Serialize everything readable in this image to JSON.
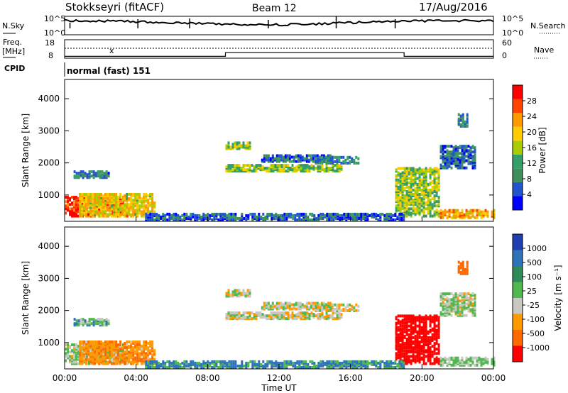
{
  "header": {
    "station": "Stokkseyri (fitACF)",
    "beam": "Beam 12",
    "date": "17/Aug/2016"
  },
  "noise_panel": {
    "left_label": "N.Sky",
    "right_label": "N.Search",
    "y_ticks_left": [
      "10^5",
      "10^0"
    ],
    "y_ticks_right": [
      "10^5",
      "10^0"
    ]
  },
  "freq_panel": {
    "left_label_1": "Freq.",
    "left_label_2": "[MHz]",
    "right_label": "Nave",
    "y_ticks_left": [
      "18",
      "8"
    ],
    "y_ticks_right": [
      "60",
      "0"
    ]
  },
  "cpid": {
    "label": "CPID",
    "value": "normal (fast) 151"
  },
  "power_panel": {
    "ylabel": "Slant Range [km]",
    "yticks": [
      "4000",
      "3000",
      "2000",
      "1000"
    ],
    "colorbar_label": "Power [dB]",
    "colorbar_ticks": [
      "28",
      "24",
      "20",
      "16",
      "12",
      "8",
      "4"
    ],
    "colors": [
      "#0000ff",
      "#2255cc",
      "#3f8f5a",
      "#33a06a",
      "#aacc00",
      "#ffcc00",
      "#ff9900",
      "#ff4400",
      "#ff0000"
    ]
  },
  "velocity_panel": {
    "ylabel": "Slant Range [km]",
    "yticks": [
      "4000",
      "3000",
      "2000",
      "1000"
    ],
    "colorbar_label": "Velocity [m s⁻¹]",
    "colorbar_ticks": [
      "1000",
      "500",
      "100",
      "25",
      "-25",
      "-100",
      "-500",
      "-1000"
    ],
    "colors": [
      "#1f3fb0",
      "#2f74b8",
      "#2e8b57",
      "#4fb84f",
      "#c8c8c0",
      "#ff9900",
      "#ff6a00",
      "#ff0000"
    ]
  },
  "xaxis": {
    "ticks": [
      "00:00",
      "04:00",
      "08:00",
      "12:00",
      "16:00",
      "20:00",
      "00:00"
    ],
    "label": "Time UT"
  },
  "chart_data": {
    "type": "heatmap",
    "x_range": [
      "00:00",
      "24:00"
    ],
    "y_range": [
      180,
      4600
    ],
    "power_scale": [
      0,
      30
    ],
    "velocity_scale": [
      -1000,
      1000
    ],
    "frequency_steps": [
      {
        "start": "00:00",
        "end": "09:00",
        "freq": 9
      },
      {
        "start": "09:00",
        "end": "19:00",
        "freq": 11
      },
      {
        "start": "19:00",
        "end": "24:00",
        "freq": 9
      }
    ],
    "features": [
      {
        "t0": 0.0,
        "t1": 3.5,
        "r0": 300,
        "r1": 900,
        "power": 26,
        "vel": 30
      },
      {
        "t0": 0.8,
        "t1": 5.0,
        "r0": 300,
        "r1": 1000,
        "power": 18,
        "vel": -80
      },
      {
        "t0": 0.5,
        "t1": 2.5,
        "r0": 1500,
        "r1": 1700,
        "power": 8,
        "vel": 60
      },
      {
        "t0": 9.0,
        "t1": 10.4,
        "r0": 2400,
        "r1": 2600,
        "power": 14,
        "vel": 0
      },
      {
        "t0": 9.0,
        "t1": 15.5,
        "r0": 1700,
        "r1": 1900,
        "power": 14,
        "vel": 0
      },
      {
        "t0": 11.0,
        "t1": 15.0,
        "r0": 2000,
        "r1": 2200,
        "power": 6,
        "vel": 0
      },
      {
        "t0": 14.0,
        "t1": 16.5,
        "r0": 1950,
        "r1": 2150,
        "power": 8,
        "vel": -10
      },
      {
        "t0": 18.5,
        "t1": 21.0,
        "r0": 300,
        "r1": 1800,
        "power": 14,
        "vel": -600
      },
      {
        "t0": 21.0,
        "t1": 24.0,
        "r0": 250,
        "r1": 500,
        "power": 20,
        "vel": 40
      },
      {
        "t0": 21.0,
        "t1": 23.0,
        "r0": 1800,
        "r1": 2500,
        "power": 6,
        "vel": 20
      },
      {
        "t0": 22.0,
        "t1": 22.5,
        "r0": 3100,
        "r1": 3500,
        "power": 8,
        "vel": -300
      },
      {
        "t0": 4.5,
        "t1": 19.0,
        "r0": 180,
        "r1": 400,
        "power": 6,
        "vel": 120
      }
    ]
  }
}
